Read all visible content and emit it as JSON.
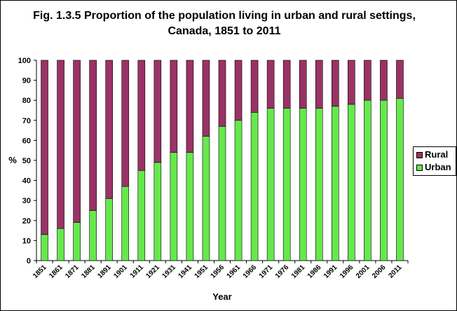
{
  "chart_data": {
    "type": "bar",
    "stacked": true,
    "title": "Fig. 1.3.5 Proportion of the population living in urban and rural settings, Canada, 1851 to 2011",
    "xlabel": "Year",
    "ylabel": "%",
    "ylim": [
      0,
      100
    ],
    "yticks": [
      "0",
      "10",
      "20",
      "30",
      "40",
      "50",
      "60",
      "70",
      "80",
      "90",
      "100"
    ],
    "categories": [
      "1851",
      "1861",
      "1871",
      "1881",
      "1891",
      "1901",
      "1911",
      "1921",
      "1931",
      "1941",
      "1951",
      "1956",
      "1961",
      "1966",
      "1971",
      "1976",
      "1981",
      "1986",
      "1991",
      "1996",
      "2001",
      "2006",
      "2011"
    ],
    "series": [
      {
        "name": "Urban",
        "color": "#66e84c",
        "values": [
          13,
          16,
          19,
          25,
          31,
          37,
          45,
          49,
          54,
          54,
          62,
          67,
          70,
          74,
          76,
          76,
          76,
          76,
          77,
          78,
          80,
          80,
          81
        ]
      },
      {
        "name": "Rural",
        "color": "#993366",
        "values": [
          87,
          84,
          81,
          75,
          69,
          63,
          55,
          51,
          46,
          46,
          38,
          33,
          30,
          26,
          24,
          24,
          24,
          24,
          23,
          22,
          20,
          20,
          19
        ]
      }
    ],
    "legend": {
      "position": "right",
      "entries": [
        "Rural",
        "Urban"
      ]
    },
    "grid": false
  }
}
